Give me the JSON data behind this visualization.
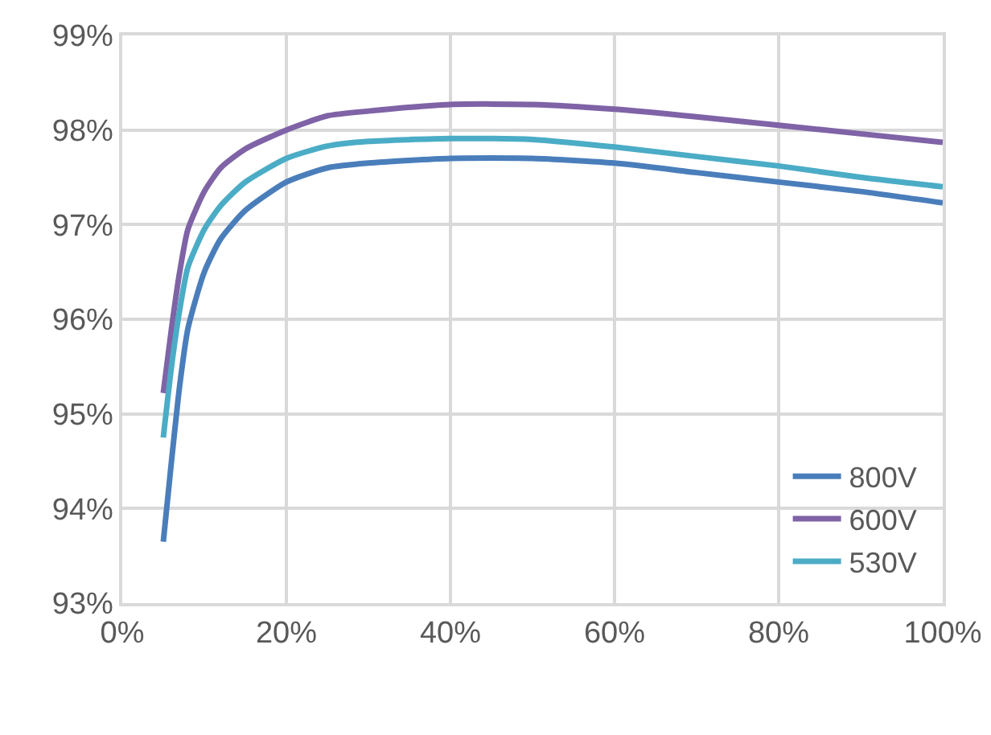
{
  "chart_data": {
    "type": "line",
    "x": [
      5,
      6,
      7,
      8,
      10,
      12,
      15,
      20,
      25,
      30,
      40,
      50,
      60,
      70,
      80,
      90,
      100
    ],
    "series": [
      {
        "name": "800V",
        "color": "#4a7ebb",
        "values": [
          93.65,
          94.5,
          95.3,
          95.9,
          96.5,
          96.85,
          97.15,
          97.45,
          97.6,
          97.65,
          97.7,
          97.7,
          97.65,
          97.55,
          97.45,
          97.35,
          97.23
        ]
      },
      {
        "name": "600V",
        "color": "#7f63a6",
        "values": [
          95.22,
          95.9,
          96.5,
          96.95,
          97.35,
          97.6,
          97.8,
          98.0,
          98.15,
          98.2,
          98.27,
          98.27,
          98.22,
          98.14,
          98.05,
          97.96,
          97.87
        ]
      },
      {
        "name": "530V",
        "color": "#4bacc6",
        "values": [
          94.75,
          95.5,
          96.1,
          96.55,
          96.95,
          97.2,
          97.45,
          97.7,
          97.83,
          97.88,
          97.91,
          97.9,
          97.82,
          97.72,
          97.62,
          97.5,
          97.4
        ]
      }
    ],
    "xlim": [
      0,
      100
    ],
    "xticks": [
      {
        "value": 0,
        "label": "0%"
      },
      {
        "value": 20,
        "label": "20%"
      },
      {
        "value": 40,
        "label": "40%"
      },
      {
        "value": 60,
        "label": "60%"
      },
      {
        "value": 80,
        "label": "80%"
      },
      {
        "value": 100,
        "label": "100%"
      }
    ],
    "ylim": [
      93,
      99
    ],
    "yticks": [
      {
        "value": 93,
        "label": "93%"
      },
      {
        "value": 94,
        "label": "94%"
      },
      {
        "value": 95,
        "label": "95%"
      },
      {
        "value": 96,
        "label": "96%"
      },
      {
        "value": 97,
        "label": "97%"
      },
      {
        "value": 98,
        "label": "98%"
      },
      {
        "value": 99,
        "label": "99%"
      }
    ],
    "grid": true,
    "legend": "bottom right",
    "marker": "none",
    "line_style": "solid"
  }
}
